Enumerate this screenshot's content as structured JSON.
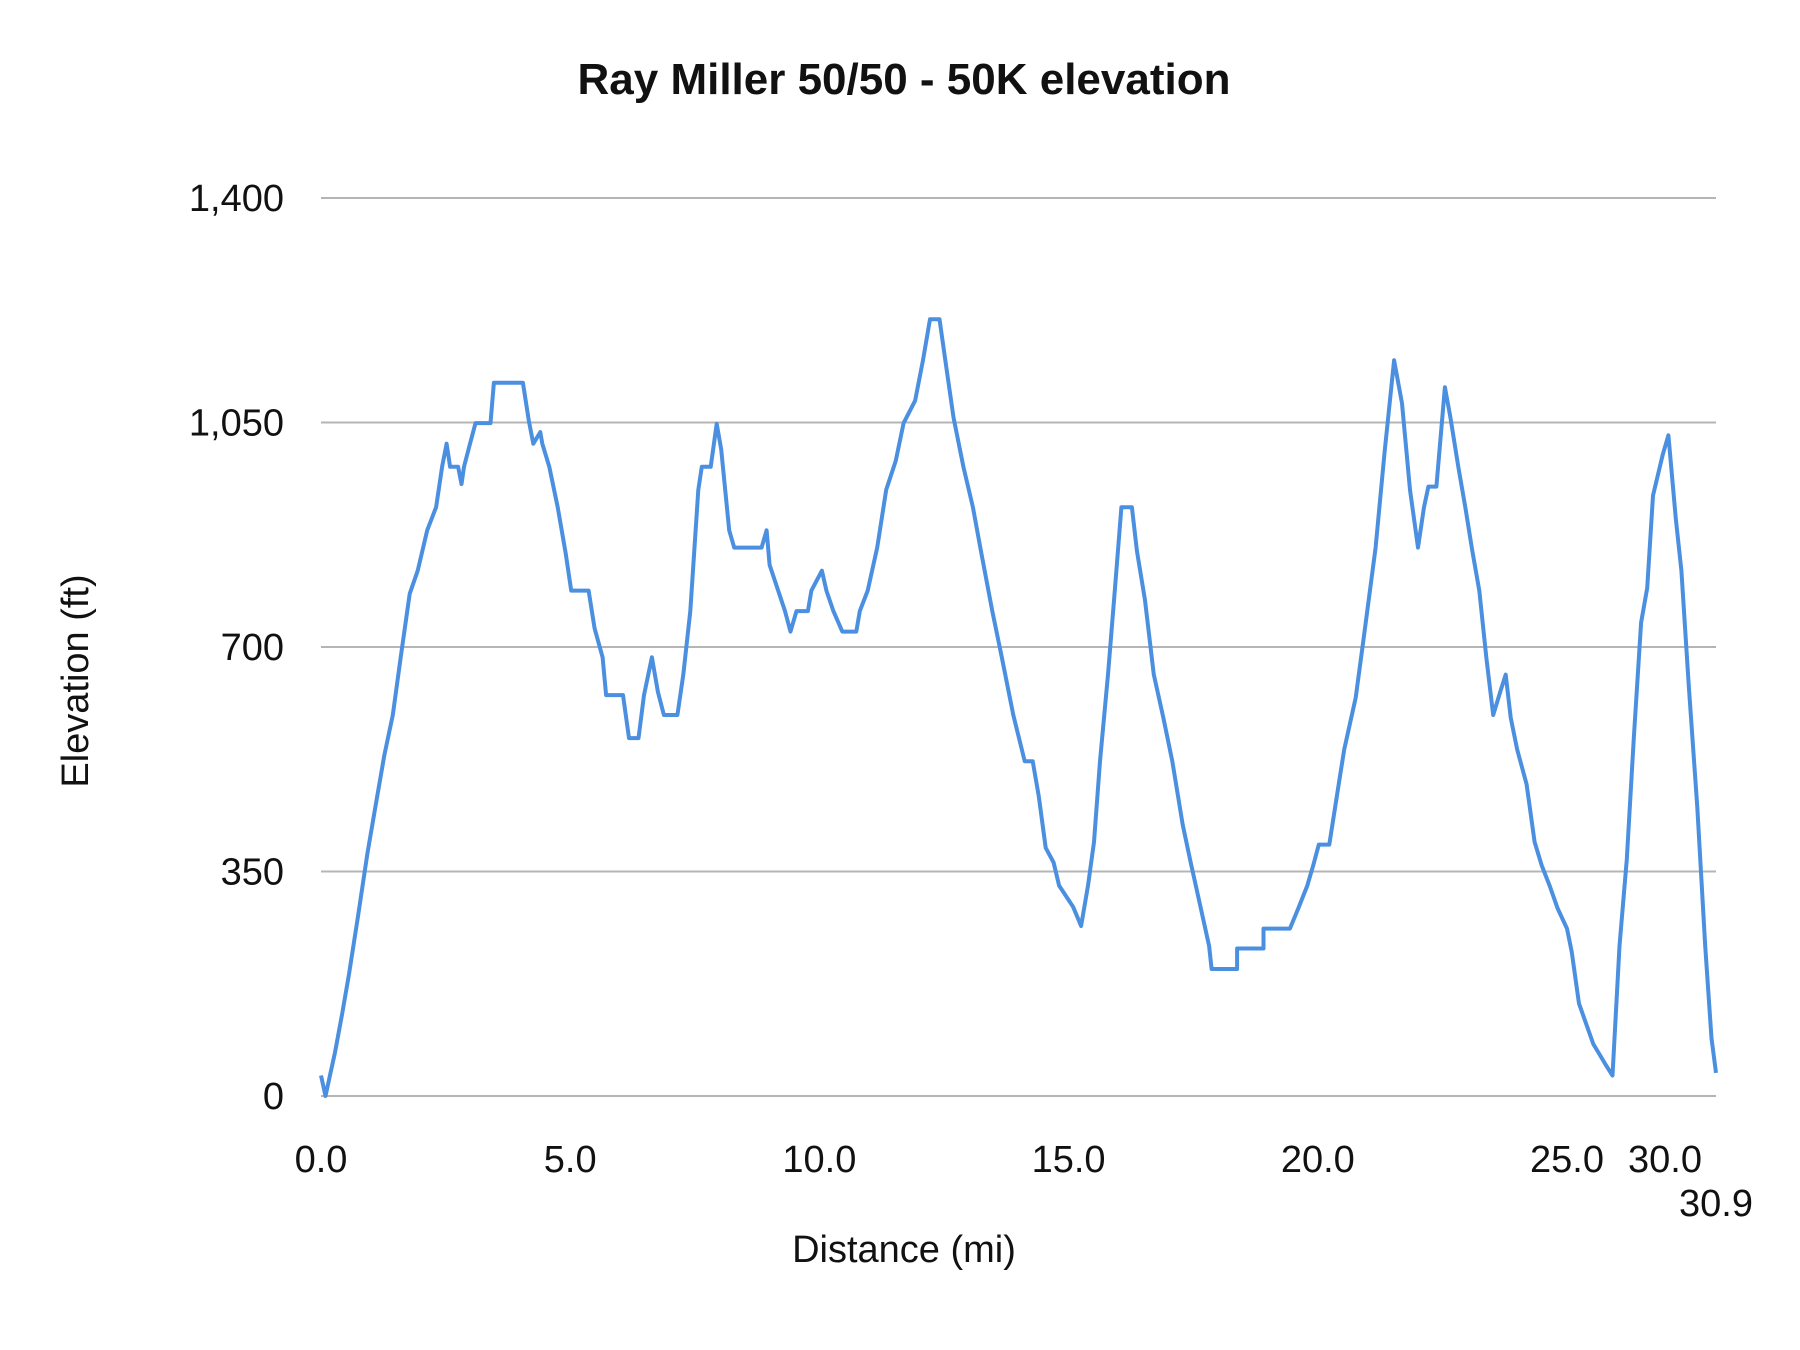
{
  "chart_data": {
    "type": "line",
    "title": "Ray Miller 50/50 - 50K elevation",
    "xlabel": "Distance (mi)",
    "ylabel": "Elevation (ft)",
    "ylim": [
      0,
      1400
    ],
    "xlim": [
      0,
      30.9
    ],
    "y_ticks": [
      "0",
      "350",
      "700",
      "1,050",
      "1,400"
    ],
    "y_tick_values": [
      0,
      350,
      700,
      1050,
      1400
    ],
    "x_ticks": [
      "0.0",
      "5.0",
      "10.0",
      "15.0",
      "20.0",
      "25.0",
      "30.0",
      "30.9"
    ],
    "x_tick_values": [
      0,
      5,
      10,
      15,
      20,
      25,
      30,
      30.9
    ],
    "grid": "horizontal",
    "legend": "none",
    "line_color": "#4a8fe0",
    "grid_color": "#b5b5b5",
    "series": [
      {
        "x": [
          0,
          0.09,
          0.19,
          0.28,
          0.42,
          0.56,
          0.74,
          0.93,
          1.09,
          1.27,
          1.44,
          1.6,
          1.78,
          1.94,
          2.13,
          2.31,
          2.43,
          2.52,
          2.59,
          2.75,
          2.82,
          2.87,
          2.99,
          3.1,
          3.4,
          3.47,
          4.05,
          4.17,
          4.26,
          4.4,
          4.44,
          4.58,
          4.75,
          4.91,
          5.02,
          5.37,
          5.49,
          5.65,
          5.72,
          6.06,
          6.18,
          6.37,
          6.48,
          6.64,
          6.76,
          6.88,
          7.15,
          7.27,
          7.41,
          7.57,
          7.64,
          7.82,
          7.94,
          8.03,
          8.19,
          8.29,
          8.84,
          8.94,
          9.0,
          9.31,
          9.42,
          9.54,
          9.77,
          9.84,
          10.05,
          10.14,
          10.28,
          10.46,
          10.74,
          10.81,
          10.97,
          11.16,
          11.34,
          11.53,
          11.69,
          11.92,
          12.08,
          12.22,
          12.41,
          12.55,
          12.69,
          12.89,
          13.08,
          13.24,
          13.47,
          13.66,
          13.89,
          14.12,
          14.28,
          14.4,
          14.54,
          14.7,
          14.81,
          15.09,
          15.25,
          15.39,
          15.51,
          15.63,
          15.79,
          15.93,
          16.06,
          16.27,
          16.37,
          16.53,
          16.71,
          16.9,
          17.08,
          17.29,
          17.45,
          17.64,
          17.82,
          17.87,
          18.38,
          18.38,
          18.91,
          18.91,
          19.44,
          19.61,
          19.79,
          19.91,
          20.02,
          20.23,
          20.42,
          20.53,
          20.76,
          20.93,
          21.16,
          21.34,
          21.53,
          21.69,
          21.85,
          22.01,
          22.13,
          22.22,
          22.38,
          22.55,
          22.66,
          22.82,
          22.96,
          23.1,
          23.24,
          23.38,
          23.52,
          23.66,
          23.77,
          23.87,
          24.0,
          24.19,
          24.35,
          24.49,
          24.65,
          24.81,
          25.0,
          25.24,
          25.61,
          26.34,
          26.95,
          27.32,
          27.68,
          28.05,
          28.41,
          28.78,
          29.09,
          29.39,
          29.88,
          30.06,
          30.19,
          30.29,
          30.42,
          30.57,
          30.71,
          30.82,
          30.9
        ],
        "y": [
          32,
          0,
          36,
          68,
          126,
          189,
          279,
          378,
          450,
          531,
          594,
          684,
          783,
          819,
          882,
          918,
          981,
          1017,
          981,
          981,
          954,
          981,
          1017,
          1049,
          1049,
          1112,
          1112,
          1053,
          1017,
          1035,
          1017,
          981,
          918,
          846,
          788,
          788,
          729,
          684,
          625,
          625,
          558,
          558,
          625,
          684,
          630,
          594,
          594,
          657,
          756,
          945,
          981,
          981,
          1048,
          1008,
          882,
          855,
          855,
          882,
          828,
          756,
          724,
          756,
          756,
          788,
          819,
          788,
          756,
          724,
          724,
          756,
          788,
          855,
          945,
          990,
          1049,
          1084,
          1148,
          1211,
          1211,
          1134,
          1058,
          981,
          918,
          850,
          756,
          684,
          594,
          522,
          522,
          468,
          387,
          364,
          328,
          295,
          265,
          328,
          396,
          522,
          657,
          792,
          918,
          918,
          850,
          774,
          657,
          590,
          522,
          423,
          364,
          297,
          234,
          198,
          198,
          230,
          230,
          261,
          261,
          293,
          328,
          360,
          392,
          392,
          486,
          540,
          621,
          720,
          855,
          1004,
          1147,
          1080,
          945,
          855,
          918,
          950,
          950,
          1105,
          1058,
          981,
          918,
          850,
          788,
          684,
          594,
          630,
          657,
          590,
          540,
          486,
          396,
          360,
          328,
          293,
          261,
          225,
          144,
          81,
          50,
          32,
          234,
          369,
          558,
          738,
          792,
          936,
          999,
          1030,
          900,
          819,
          639,
          450,
          234,
          90,
          36
        ]
      }
    ]
  }
}
